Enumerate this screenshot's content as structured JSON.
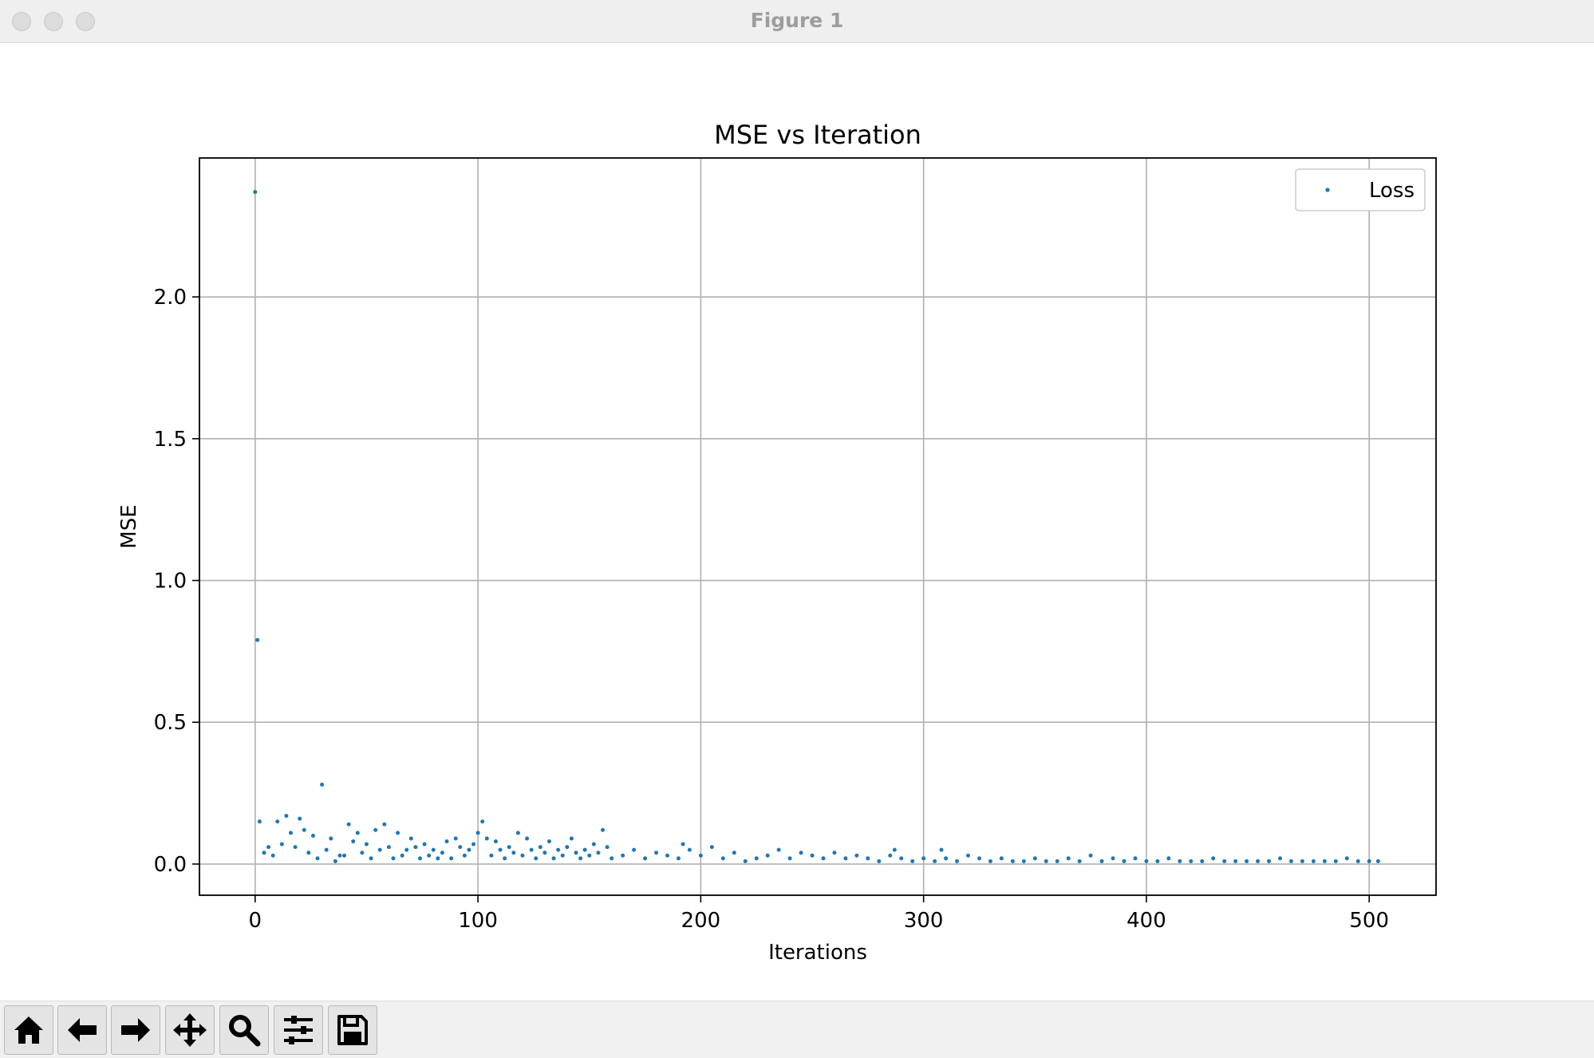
{
  "window": {
    "title": "Figure 1"
  },
  "toolbar": {
    "buttons": [
      {
        "name": "home-icon"
      },
      {
        "name": "back-arrow-icon"
      },
      {
        "name": "forward-arrow-icon"
      },
      {
        "name": "pan-move-icon"
      },
      {
        "name": "zoom-magnifier-icon"
      },
      {
        "name": "configure-subplots-icon"
      },
      {
        "name": "save-floppy-icon"
      }
    ]
  },
  "chart_data": {
    "type": "scatter",
    "title": "MSE vs Iteration",
    "xlabel": "Iterations",
    "ylabel": "MSE",
    "xlim": [
      -25,
      530
    ],
    "ylim": [
      -0.11,
      2.49
    ],
    "xticks": [
      0,
      100,
      200,
      300,
      400,
      500
    ],
    "xtick_labels": [
      "0",
      "100",
      "200",
      "300",
      "400",
      "500"
    ],
    "yticks": [
      0.0,
      0.5,
      1.0,
      1.5,
      2.0
    ],
    "ytick_labels": [
      "0.0",
      "0.5",
      "1.0",
      "1.5",
      "2.0"
    ],
    "grid": true,
    "legend_position": "top-right",
    "series": [
      {
        "name": "Loss",
        "color": "#1f77b4",
        "x": [
          0,
          1,
          2,
          4,
          6,
          8,
          10,
          12,
          14,
          16,
          18,
          20,
          22,
          24,
          26,
          28,
          30,
          32,
          34,
          36,
          38,
          40,
          42,
          44,
          46,
          48,
          50,
          52,
          54,
          56,
          58,
          60,
          62,
          64,
          66,
          68,
          70,
          72,
          74,
          76,
          78,
          80,
          82,
          84,
          86,
          88,
          90,
          92,
          94,
          96,
          98,
          100,
          102,
          104,
          106,
          108,
          110,
          112,
          114,
          116,
          118,
          120,
          122,
          124,
          126,
          128,
          130,
          132,
          134,
          136,
          138,
          140,
          142,
          144,
          146,
          148,
          150,
          152,
          154,
          156,
          158,
          160,
          165,
          170,
          175,
          180,
          185,
          190,
          192,
          195,
          200,
          205,
          210,
          215,
          220,
          225,
          230,
          235,
          240,
          245,
          250,
          255,
          260,
          265,
          270,
          275,
          280,
          285,
          287,
          290,
          295,
          300,
          305,
          308,
          310,
          315,
          320,
          325,
          330,
          335,
          340,
          345,
          350,
          355,
          360,
          365,
          370,
          375,
          380,
          385,
          390,
          395,
          400,
          405,
          410,
          415,
          420,
          425,
          430,
          435,
          440,
          445,
          450,
          455,
          460,
          465,
          470,
          475,
          480,
          485,
          490,
          495,
          500,
          504
        ],
        "y": [
          2.37,
          0.79,
          0.15,
          0.04,
          0.06,
          0.03,
          0.15,
          0.07,
          0.17,
          0.11,
          0.06,
          0.16,
          0.12,
          0.04,
          0.1,
          0.02,
          0.28,
          0.05,
          0.09,
          0.01,
          0.03,
          0.03,
          0.14,
          0.08,
          0.11,
          0.04,
          0.07,
          0.02,
          0.12,
          0.05,
          0.14,
          0.06,
          0.02,
          0.11,
          0.03,
          0.05,
          0.09,
          0.06,
          0.02,
          0.07,
          0.03,
          0.05,
          0.02,
          0.04,
          0.08,
          0.02,
          0.09,
          0.06,
          0.03,
          0.05,
          0.07,
          0.11,
          0.15,
          0.09,
          0.03,
          0.08,
          0.05,
          0.02,
          0.06,
          0.04,
          0.11,
          0.03,
          0.09,
          0.05,
          0.02,
          0.06,
          0.04,
          0.08,
          0.02,
          0.05,
          0.03,
          0.06,
          0.09,
          0.04,
          0.02,
          0.05,
          0.03,
          0.07,
          0.04,
          0.12,
          0.06,
          0.02,
          0.03,
          0.05,
          0.02,
          0.04,
          0.03,
          0.02,
          0.07,
          0.05,
          0.03,
          0.06,
          0.02,
          0.04,
          0.01,
          0.02,
          0.03,
          0.05,
          0.02,
          0.04,
          0.03,
          0.02,
          0.04,
          0.02,
          0.03,
          0.02,
          0.01,
          0.03,
          0.05,
          0.02,
          0.01,
          0.02,
          0.01,
          0.05,
          0.02,
          0.01,
          0.03,
          0.02,
          0.01,
          0.02,
          0.01,
          0.01,
          0.02,
          0.01,
          0.01,
          0.02,
          0.01,
          0.03,
          0.01,
          0.02,
          0.01,
          0.02,
          0.01,
          0.01,
          0.02,
          0.01,
          0.01,
          0.01,
          0.02,
          0.01,
          0.01,
          0.01,
          0.01,
          0.01,
          0.02,
          0.01,
          0.01,
          0.01,
          0.01,
          0.01,
          0.02,
          0.01,
          0.01,
          0.01
        ]
      }
    ]
  }
}
